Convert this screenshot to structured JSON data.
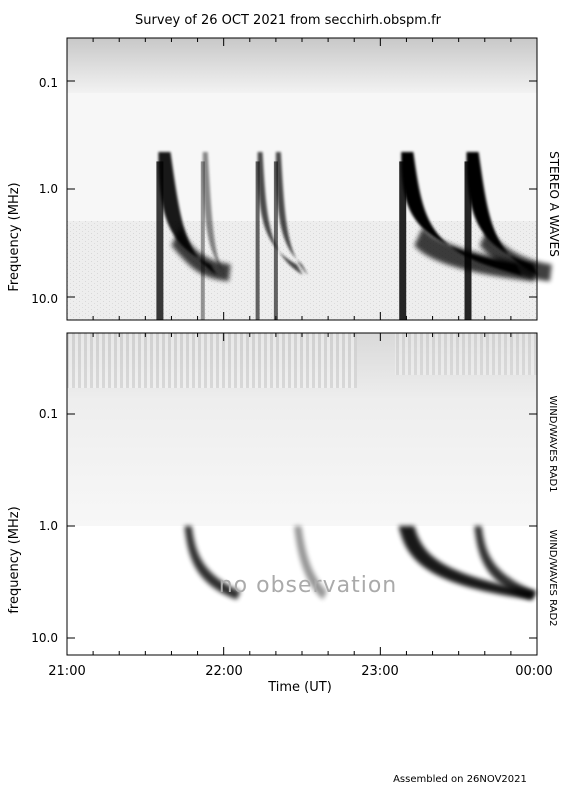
{
  "title": "Survey of 26 OCT 2021 from secchirh.obspm.fr",
  "footer": "Assembled on 26NOV2021",
  "colors": {
    "background": "#ffffff",
    "ink": "#000000",
    "burst": "#000000",
    "no_obs_text": "#aaaaaa"
  },
  "chart_data": [
    {
      "type": "heatmap",
      "instrument": "STEREO A WAVES",
      "ylabel": "Frequency (MHz)",
      "yscale": "log",
      "ylim": [
        14.0,
        0.04
      ],
      "y_ticks": [
        "0.1",
        "1.0",
        "10.0"
      ],
      "xlim": [
        "21:00",
        "00:00"
      ],
      "x_ticks": [
        "21:00",
        "22:00",
        "23:00",
        "00:00"
      ],
      "bursts": [
        {
          "start": "21:35",
          "peak_end": "21:55",
          "intensity": "strong"
        },
        {
          "start": "21:52",
          "peak_end": "21:58",
          "intensity": "weak"
        },
        {
          "start": "22:13",
          "peak_end": "22:28",
          "intensity": "moderate"
        },
        {
          "start": "22:20",
          "peak_end": "22:30",
          "intensity": "moderate"
        },
        {
          "start": "23:08",
          "peak_end": "23:52",
          "intensity": "very strong"
        },
        {
          "start": "23:33",
          "peak_end": "23:58",
          "intensity": "very strong"
        }
      ]
    },
    {
      "type": "heatmap",
      "instrument_rad1": "WIND/WAVES RAD1",
      "instrument_rad2": "WIND/WAVES RAD2",
      "ylabel": "frequency (MHz)",
      "yscale": "log",
      "ylim": [
        14.0,
        0.02
      ],
      "y_ticks": [
        "0.1",
        "1.0",
        "10.0"
      ],
      "xlim": [
        "21:00",
        "00:00"
      ],
      "x_ticks": [
        "21:00",
        "22:00",
        "23:00",
        "00:00"
      ],
      "xlabel": "Time (UT)",
      "rad2_status": "no observation",
      "bursts": [
        {
          "start": "21:45",
          "peak_end": "22:05",
          "intensity": "strong"
        },
        {
          "start": "22:27",
          "peak_end": "22:38",
          "intensity": "weak"
        },
        {
          "start": "23:07",
          "peak_end": "23:58",
          "intensity": "very strong"
        },
        {
          "start": "23:36",
          "peak_end": "23:58",
          "intensity": "strong"
        }
      ]
    }
  ]
}
